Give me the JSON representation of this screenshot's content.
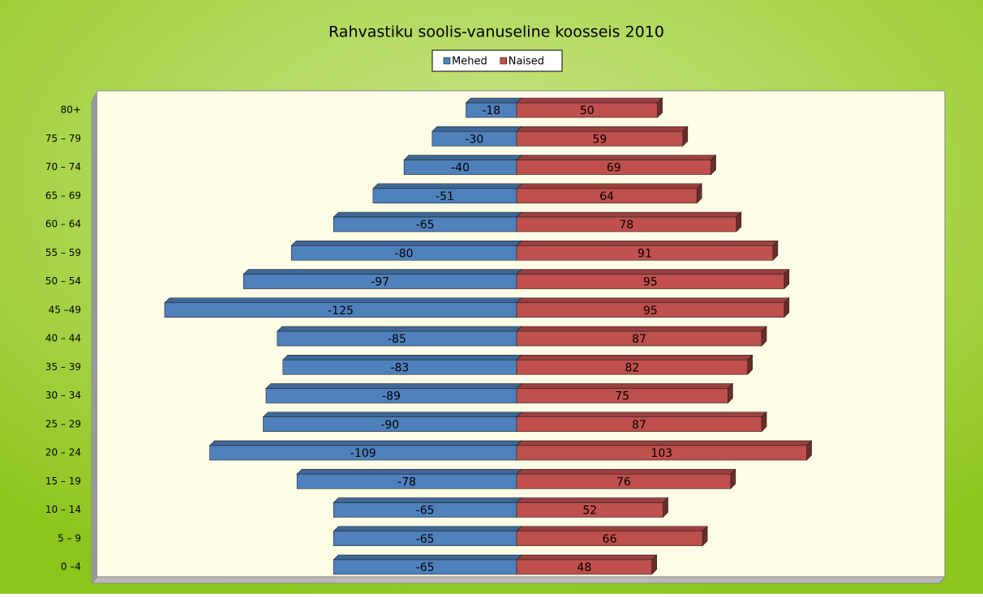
{
  "chart_data": {
    "type": "bar",
    "orientation": "horizontal",
    "stacking": "diverging",
    "title": "Rahvastiku soolis-vanuseline koosseis 2010",
    "categories": [
      "80+",
      "75 – 79",
      "70 – 74",
      "65 – 69",
      "60 – 64",
      "55 – 59",
      "50 – 54",
      "45 –49",
      "40 – 44",
      "35 – 39",
      "30 – 34",
      "25 – 29",
      "20 – 24",
      "15 – 19",
      "10 – 14",
      "5 – 9",
      "0 –4"
    ],
    "series": [
      {
        "name": "Mehed",
        "color": "#4f81bd",
        "values": [
          -18,
          -30,
          -40,
          -51,
          -65,
          -80,
          -97,
          -125,
          -85,
          -83,
          -89,
          -90,
          -109,
          -78,
          -65,
          -65,
          -65
        ]
      },
      {
        "name": "Naised",
        "color": "#c0504d",
        "values": [
          50,
          59,
          69,
          64,
          78,
          91,
          95,
          95,
          87,
          82,
          75,
          87,
          103,
          76,
          52,
          66,
          48
        ]
      }
    ],
    "legend": "top"
  }
}
